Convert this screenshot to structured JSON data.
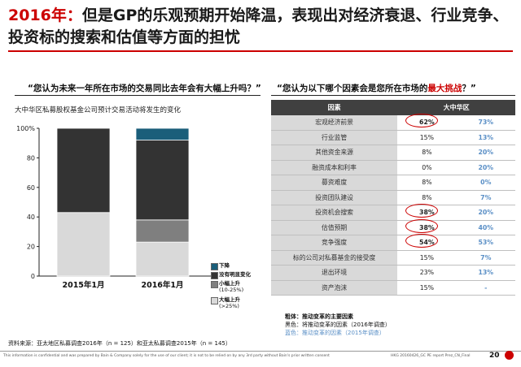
{
  "title": {
    "year": "2016年：",
    "text": "但是GP的乐观预期开始降温，表现出对经济衰退、行业竞争、投资标的搜索和估值等方面的担忧"
  },
  "left": {
    "question": "“您认为未来一年所在市场的交易同比去年会有大幅上升吗？”",
    "subtitle": "大中华区私募股权基金公司预计交易活动将发生的变化"
  },
  "right": {
    "question_pre": "“您认为以下哪个因素会是您所在市场的",
    "question_hl": "最大挑战",
    "question_post": "？”",
    "col_factor": "因素",
    "col_region": "大中华区",
    "rows": [
      {
        "label": "宏观经济前景",
        "v1": "62%",
        "v2": "73%"
      },
      {
        "label": "行业监管",
        "v1": "15%",
        "v2": "13%"
      },
      {
        "label": "其他资金来源",
        "v1": "8%",
        "v2": "20%"
      },
      {
        "label": "融资成本和利率",
        "v1": "0%",
        "v2": "20%"
      },
      {
        "label": "募资难度",
        "v1": "8%",
        "v2": "0%"
      },
      {
        "label": "投资团队建设",
        "v1": "8%",
        "v2": "7%"
      },
      {
        "label": "投资机会搜索",
        "v1": "38%",
        "v2": "20%"
      },
      {
        "label": "估值预期",
        "v1": "38%",
        "v2": "40%"
      },
      {
        "label": "竞争强度",
        "v1": "54%",
        "v2": "53%"
      },
      {
        "label": "标的公司对私募基金的接受度",
        "v1": "15%",
        "v2": "7%"
      },
      {
        "label": "退出环境",
        "v1": "23%",
        "v2": "13%"
      },
      {
        "label": "资产泡沫",
        "v1": "15%",
        "v2": "-"
      }
    ],
    "notes": {
      "head": "粗体：推动变革的主要因素",
      "black": "黑色：将推动变革的因素（2016年调查）",
      "blue": "蓝色：推动变革的因素（2015年调查）"
    }
  },
  "source": "资料来源：亚太地区私募调查2016年（n = 125）和亚太私募调查2015年（n = 145）",
  "footer": "This information is confidential and was prepared by Bain & Company solely for the use of our client; it is not to be relied on by any 3rd party without Bain's prior written consent",
  "footer_right": "HKG    20160426_GC PE report Prez_CN_Final",
  "page_number": "20",
  "colors": {
    "down": "#1a5e7a",
    "flat": "#333333",
    "small_up": "#7f7f7f",
    "big_up": "#d9d9d9",
    "accent": "#cc0000",
    "blue": "#5a8fc6"
  },
  "chart_data": {
    "type": "bar",
    "stacked": true,
    "categories": [
      "2015年1月",
      "2016年1月"
    ],
    "ylim": [
      0,
      100
    ],
    "yticks": [
      "0",
      "20",
      "40",
      "60",
      "80",
      "100%"
    ],
    "series": [
      {
        "name": "大幅上升",
        "sub": "(>25%)",
        "values": [
          43,
          23
        ]
      },
      {
        "name": "小幅上升",
        "sub": "(10-25%)",
        "values": [
          0,
          15
        ]
      },
      {
        "name": "没有明显变化",
        "sub": "",
        "values": [
          57,
          54
        ]
      },
      {
        "name": "下降",
        "sub": "",
        "values": [
          0,
          8
        ]
      }
    ]
  }
}
